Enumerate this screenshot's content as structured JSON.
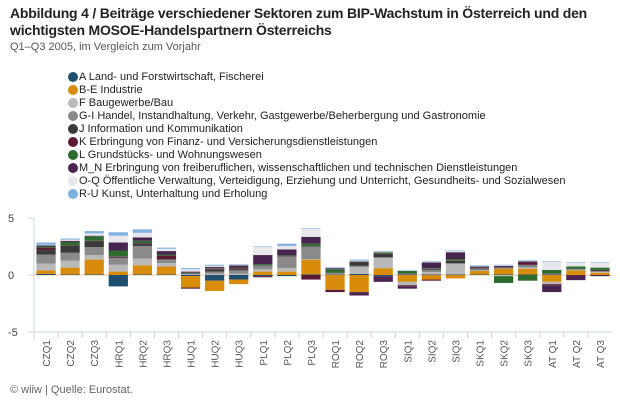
{
  "title": "Abbildung 4 / Beiträge verschiedener Sektoren zum BIP-Wachstum in Österreich und den wichtigsten MOSOE-Handelspartnern Österreichs",
  "subtitle": "Q1–Q3 2005, im Vergleich zum Vorjahr",
  "footer": "© wiiw | Quelle: Eurostat.",
  "chart_data": {
    "type": "bar",
    "stacked": true,
    "title": "Beiträge verschiedener Sektoren zum BIP-Wachstum",
    "xlabel": "",
    "ylabel": "",
    "ylim": [
      -5,
      5
    ],
    "yticks": [
      5,
      0,
      -5
    ],
    "grid": false,
    "legend_position": "top-left",
    "categories": [
      "CZQ1",
      "CZQ2",
      "CZQ3",
      "HRQ1",
      "HRQ2",
      "HRQ3",
      "HUQ1",
      "HUQ2",
      "HUQ3",
      "PLQ1",
      "PLQ2",
      "PLQ3",
      "ROQ1",
      "ROQ2",
      "ROQ3",
      "SIQ1",
      "SIQ2",
      "SIQ3",
      "SKQ1",
      "SKQ2",
      "SKQ3",
      "AT Q1",
      "AT Q2",
      "AT Q3"
    ],
    "series": [
      {
        "name": "A Land- und Forstwirtschaft, Fischerei",
        "color": "#1f4e6e",
        "values": [
          0.1,
          0.05,
          0.05,
          -1.0,
          0.05,
          0.05,
          -0.1,
          -0.5,
          -0.4,
          -0.1,
          -0.1,
          0.05,
          0.05,
          0.1,
          -0.1,
          0.05,
          0.05,
          0.05,
          0.05,
          0.05,
          0.05,
          0.05,
          0.0,
          0.0
        ]
      },
      {
        "name": "B-E Industrie",
        "color": "#d98c0a",
        "values": [
          0.3,
          0.6,
          1.3,
          0.3,
          0.8,
          0.7,
          -1.0,
          -0.9,
          -0.4,
          0.3,
          0.3,
          1.3,
          -1.3,
          -1.5,
          0.6,
          -0.6,
          -0.4,
          -0.3,
          0.3,
          0.5,
          0.5,
          -0.6,
          0.4,
          0.2
        ]
      },
      {
        "name": "F Baugewerbe/Bau",
        "color": "#b9b9b9",
        "values": [
          0.6,
          0.6,
          0.4,
          0.6,
          0.6,
          0.3,
          0.05,
          0.1,
          0.1,
          0.2,
          0.3,
          0.05,
          0.05,
          0.6,
          0.9,
          -0.3,
          0.2,
          0.9,
          0.05,
          -0.1,
          0.1,
          -0.2,
          0.05,
          0.05
        ]
      },
      {
        "name": "G-I Handel, Instandhaltung, Verkehr, Gastgewerbe/Beherbergung und Gastronomie",
        "color": "#8a8a8a",
        "values": [
          0.8,
          0.7,
          0.7,
          0.6,
          1.1,
          0.3,
          0.05,
          0.2,
          0.3,
          0.3,
          1.0,
          1.1,
          0.05,
          0.1,
          0.05,
          0.05,
          0.2,
          0.1,
          0.1,
          0.1,
          0.2,
          0.05,
          0.05,
          0.1
        ]
      },
      {
        "name": "J Information und Kommunikation",
        "color": "#3a3a3a",
        "values": [
          0.4,
          0.6,
          0.5,
          0.1,
          0.2,
          0.05,
          0.05,
          0.2,
          0.1,
          0.05,
          0.05,
          0.05,
          0.05,
          0.3,
          0.3,
          0.05,
          0.1,
          0.2,
          0.05,
          0.05,
          0.05,
          0.05,
          0.05,
          0.05
        ]
      },
      {
        "name": "K Erbringung von Finanz- und Versicherungsdienstleistungen",
        "color": "#5a1a33",
        "values": [
          0.2,
          0.05,
          0.05,
          0.05,
          0.05,
          0.3,
          -0.1,
          0.05,
          0.1,
          -0.1,
          0.05,
          -0.4,
          -0.2,
          0.05,
          0.05,
          -0.1,
          -0.1,
          0.05,
          0.05,
          0.05,
          0.2,
          -0.1,
          -0.05,
          0.05
        ]
      },
      {
        "name": "L Grundstücks- und Wohnungswesen",
        "color": "#2e6b2e",
        "values": [
          0.1,
          0.3,
          0.4,
          0.5,
          0.2,
          0.1,
          0.05,
          0.05,
          0.05,
          0.1,
          0.05,
          0.2,
          0.3,
          0.05,
          0.1,
          0.2,
          0.05,
          0.1,
          0.05,
          -0.6,
          -0.5,
          0.3,
          0.2,
          0.2
        ]
      },
      {
        "name": "M_N Erbringung von freiberuflichen, wissenschaftlichen und technischen Dienstleistungen",
        "color": "#4a2450",
        "values": [
          0.1,
          0.1,
          0.05,
          0.7,
          0.3,
          0.3,
          0.1,
          0.1,
          0.2,
          0.8,
          0.5,
          0.6,
          0.1,
          -0.3,
          -0.5,
          -0.2,
          0.5,
          0.6,
          0.1,
          0.05,
          0.1,
          -0.6,
          -0.4,
          -0.1
        ]
      },
      {
        "name": "O-Q Öffentliche Verwaltung, Verteidigung, Erziehung und Unterricht, Gesundheits- und Sozialwesen",
        "color": "#e8e8ec",
        "values": [
          0.05,
          0.1,
          0.2,
          0.6,
          0.4,
          0.2,
          0.2,
          0.1,
          0.05,
          0.7,
          0.3,
          0.7,
          0.05,
          0.05,
          0.05,
          0.05,
          0.05,
          0.1,
          0.05,
          0.05,
          0.05,
          0.7,
          0.3,
          0.4
        ]
      },
      {
        "name": "R-U Kunst, Unterhaltung und Erholung",
        "color": "#7fb2e0",
        "values": [
          0.2,
          0.1,
          0.2,
          0.3,
          0.3,
          0.1,
          0.1,
          0.1,
          0.05,
          0.05,
          0.2,
          0.05,
          0.05,
          0.1,
          0.05,
          0.05,
          0.05,
          0.05,
          0.05,
          0.05,
          0.05,
          0.05,
          0.05,
          0.05
        ]
      }
    ]
  }
}
